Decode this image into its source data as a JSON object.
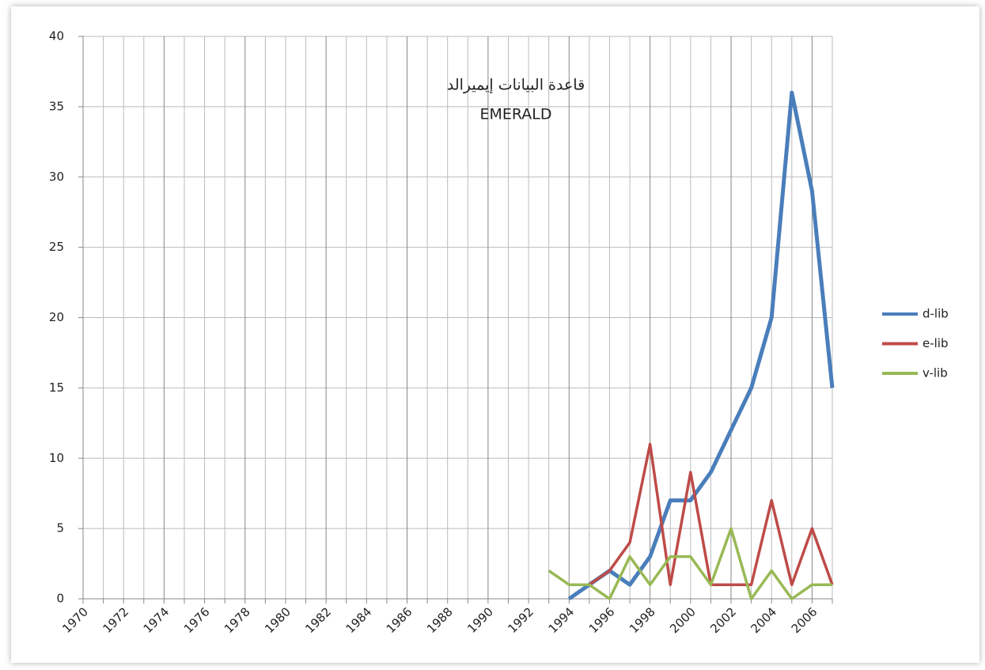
{
  "chart_data": {
    "type": "line",
    "title": "قاعدة البيانات إيميرالد",
    "subtitle": "EMERALD",
    "categories": [
      "1970",
      null,
      "1972",
      null,
      "1974",
      null,
      "1976",
      null,
      "1978",
      null,
      "1980",
      null,
      "1982",
      null,
      "1984",
      null,
      "1986",
      null,
      "1988",
      null,
      "1990",
      null,
      "1992",
      null,
      "1994",
      null,
      "1996",
      null,
      "1998",
      null,
      "2000",
      null,
      "2002",
      null,
      "2004",
      null,
      "2006",
      null
    ],
    "series": [
      {
        "name": "d-lib",
        "color": "#4a7ebb",
        "values": [
          null,
          null,
          null,
          null,
          null,
          null,
          null,
          null,
          null,
          null,
          null,
          null,
          null,
          null,
          null,
          null,
          null,
          null,
          null,
          null,
          null,
          null,
          null,
          null,
          0,
          1,
          2,
          1,
          3,
          7,
          7,
          9,
          12,
          15,
          20,
          36,
          29,
          15
        ]
      },
      {
        "name": "e-lib",
        "color": "#be4b48",
        "values": [
          null,
          null,
          null,
          null,
          null,
          null,
          null,
          null,
          null,
          null,
          null,
          null,
          null,
          null,
          null,
          null,
          null,
          null,
          null,
          null,
          null,
          null,
          null,
          null,
          null,
          1,
          2,
          4,
          11,
          1,
          9,
          1,
          1,
          1,
          7,
          1,
          5,
          1
        ]
      },
      {
        "name": "v-lib",
        "color": "#98b954",
        "values": [
          null,
          null,
          null,
          null,
          null,
          null,
          null,
          null,
          null,
          null,
          null,
          null,
          null,
          null,
          null,
          null,
          null,
          null,
          null,
          null,
          null,
          null,
          null,
          2,
          1,
          1,
          0,
          3,
          1,
          3,
          3,
          1,
          5,
          0,
          2,
          0,
          1,
          1
        ]
      }
    ],
    "ylim": [
      0,
      40
    ],
    "yticks": [
      0,
      5,
      10,
      15,
      20,
      25,
      30,
      35,
      40
    ],
    "grid": true,
    "legend": "right"
  }
}
